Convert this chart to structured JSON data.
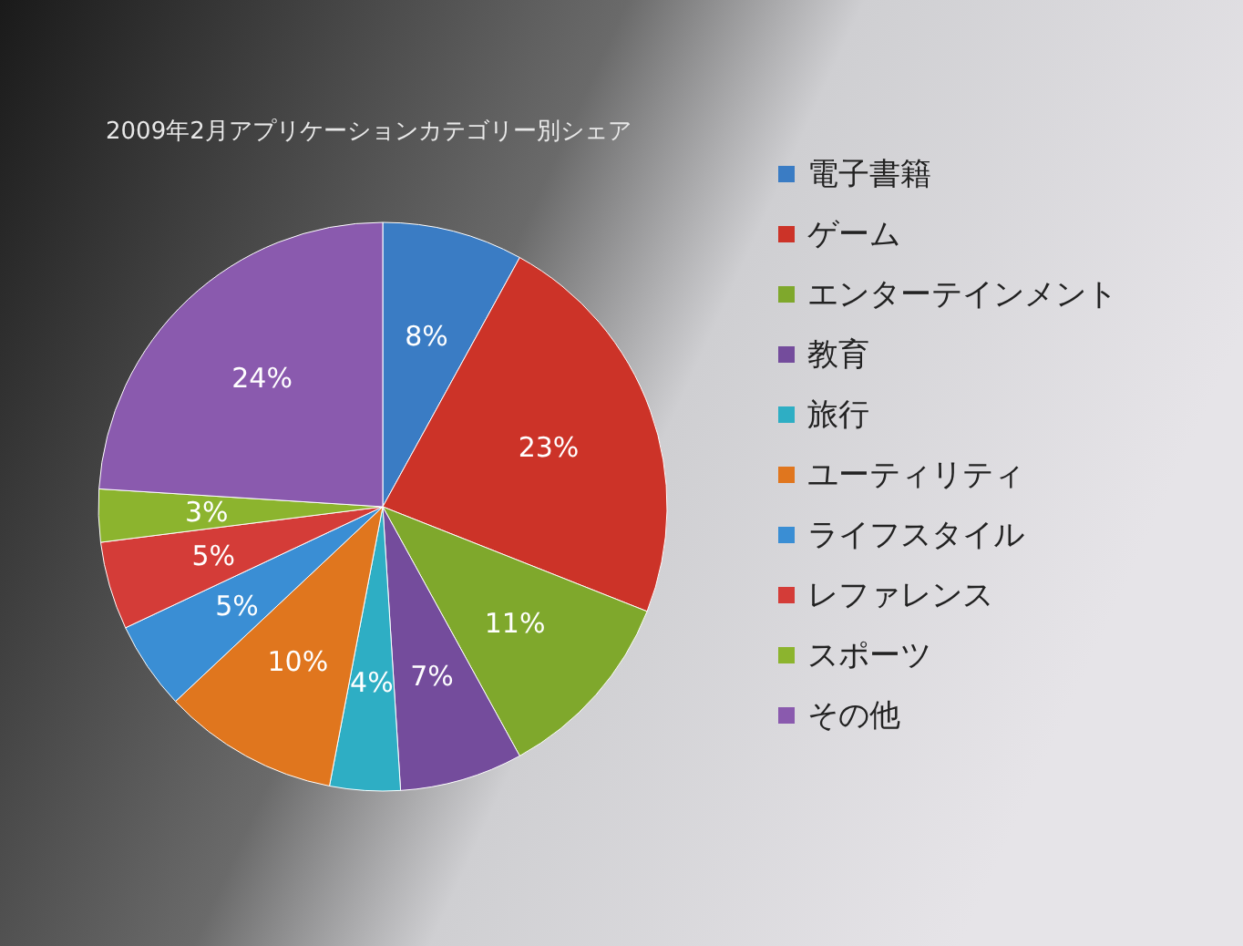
{
  "chart_data": {
    "type": "pie",
    "title": "2009年2月アプリケーションカテゴリー別シェア",
    "categories": [
      "電子書籍",
      "ゲーム",
      "エンターテインメント",
      "教育",
      "旅行",
      "ユーティリティ",
      "ライフスタイル",
      "レファレンス",
      "スポーツ",
      "その他"
    ],
    "values": [
      8,
      23,
      11,
      7,
      4,
      10,
      5,
      5,
      3,
      24
    ],
    "value_labels": [
      "8%",
      "23%",
      "11%",
      "7%",
      "4%",
      "10%",
      "5%",
      "5%",
      "3%",
      "24%"
    ],
    "colors": [
      "#3a7cc4",
      "#cc3328",
      "#7fa82c",
      "#744c9c",
      "#2eaec4",
      "#e0761e",
      "#3a8ed4",
      "#d43c38",
      "#8cb42e",
      "#8a5aae"
    ],
    "legend": "right"
  }
}
